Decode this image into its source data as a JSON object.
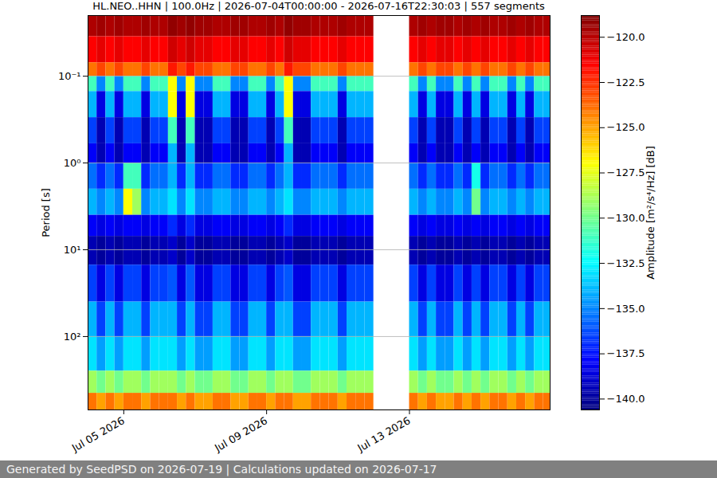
{
  "chart_data": {
    "type": "heatmap",
    "title": "HL.NEO..HHN | 100.0Hz | 2026-07-04T00:00:00 - 2026-07-16T22:30:03 | 557 segments",
    "ylabel": "Period [s]",
    "footer": "Generated by SeedPSD on 2026-07-19 | Calculations updated on 2026-07-17",
    "log": "y",
    "grid": "y",
    "xlim": [
      "2026-07-04T00:00:00",
      "2026-07-16T22:30:03"
    ],
    "xticks": [
      {
        "value": "2026-07-05T00:00:00",
        "label": "Jul 05 2026"
      },
      {
        "value": "2026-07-09T00:00:00",
        "label": "Jul 09 2026"
      },
      {
        "value": "2026-07-13T00:00:00",
        "label": "Jul 13 2026"
      }
    ],
    "ylim": [
      0.02,
      700
    ],
    "yticks": [
      {
        "value": 0.1,
        "label": "10⁻¹"
      },
      {
        "value": 1,
        "label": "10⁰"
      },
      {
        "value": 10,
        "label": "10¹"
      },
      {
        "value": 100,
        "label": "10²"
      }
    ],
    "colorbar": {
      "label": "Amplitude [m²/s⁴/Hz] [dB]",
      "range": [
        -140.6,
        -118.8
      ],
      "ticks": [
        {
          "value": -140,
          "label": "−140.0"
        },
        {
          "value": -137.5,
          "label": "−137.5"
        },
        {
          "value": -135,
          "label": "−135.0"
        },
        {
          "value": -132.5,
          "label": "−132.5"
        },
        {
          "value": -130,
          "label": "−130.0"
        },
        {
          "value": -127.5,
          "label": "−127.5"
        },
        {
          "value": -125,
          "label": "−125.0"
        },
        {
          "value": -122.5,
          "label": "−122.5"
        },
        {
          "value": -120,
          "label": "−120.0"
        }
      ]
    },
    "x_edges": [
      "2026-07-04T00:00:00",
      "2026-07-04T06:00:00",
      "2026-07-04T12:00:00",
      "2026-07-04T18:00:00",
      "2026-07-05T00:00:00",
      "2026-07-05T06:00:00",
      "2026-07-05T12:00:00",
      "2026-07-05T18:00:00",
      "2026-07-06T00:00:00",
      "2026-07-06T06:00:00",
      "2026-07-06T12:00:00",
      "2026-07-06T18:00:00",
      "2026-07-07T00:00:00",
      "2026-07-07T06:00:00",
      "2026-07-07T12:00:00",
      "2026-07-07T18:00:00",
      "2026-07-08T00:00:00",
      "2026-07-08T06:00:00",
      "2026-07-08T12:00:00",
      "2026-07-08T18:00:00",
      "2026-07-09T00:00:00",
      "2026-07-09T06:00:00",
      "2026-07-09T12:00:00",
      "2026-07-09T18:00:00",
      "2026-07-10T00:00:00",
      "2026-07-10T06:00:00",
      "2026-07-10T12:00:00",
      "2026-07-10T18:00:00",
      "2026-07-11T00:00:00",
      "2026-07-11T06:00:00",
      "2026-07-11T12:00:00",
      "2026-07-11T18:00:00",
      "2026-07-12T00:00:00",
      "2026-07-12T06:00:00",
      "2026-07-12T12:00:00",
      "2026-07-12T18:00:00",
      "2026-07-13T00:00:00",
      "2026-07-13T06:00:00",
      "2026-07-13T12:00:00",
      "2026-07-13T18:00:00",
      "2026-07-14T00:00:00",
      "2026-07-14T06:00:00",
      "2026-07-14T12:00:00",
      "2026-07-14T18:00:00",
      "2026-07-15T00:00:00",
      "2026-07-15T06:00:00",
      "2026-07-15T12:00:00",
      "2026-07-15T18:00:00",
      "2026-07-16T00:00:00",
      "2026-07-16T06:00:00",
      "2026-07-16T12:00:00",
      "2026-07-16T18:00:00",
      "2026-07-16T22:30:03"
    ],
    "y_edges": [
      0.02,
      0.035,
      0.07,
      0.1,
      0.15,
      0.3,
      0.6,
      1,
      2,
      4,
      7,
      15,
      40,
      100,
      250,
      450,
      700
    ],
    "values": [
      [
        -119.8,
        -119.5,
        -119.8,
        -119.5,
        -119.8,
        -119.8,
        -119.5,
        -119.8,
        -119.8,
        -119.2,
        -119.5,
        -119.2,
        -119.5,
        -119.5,
        -119.8,
        -119.8,
        -119.5,
        -119.5,
        -119.8,
        -119.8,
        -119.5,
        -119.8,
        -119.2,
        -119.5,
        -119.5,
        -119.8,
        -119.8,
        -119.8,
        -119.5,
        -119.8,
        -119.8,
        -119.8,
        null,
        null,
        null,
        null,
        -119.8,
        -119.5,
        -119.8,
        -119.5,
        -119.5,
        -119.8,
        -119.5,
        -119.8,
        -119.5,
        -119.8,
        -119.8,
        -119.5,
        -119.8,
        -119.5,
        -119.8,
        -119.8
      ],
      [
        -121.5,
        -121,
        -121.5,
        -121,
        -121.5,
        -121.5,
        -121,
        -121.5,
        -121.5,
        -120.5,
        -121,
        -120.5,
        -121,
        -121,
        -121.5,
        -121.5,
        -121,
        -121,
        -121.5,
        -121.5,
        -121,
        -121.5,
        -120.5,
        -121,
        -121,
        -121.5,
        -121.5,
        -121.5,
        -121,
        -121.5,
        -121.5,
        -121.5,
        null,
        null,
        null,
        null,
        -121.5,
        -121,
        -121.5,
        -121,
        -121,
        -121.5,
        -121,
        -121.5,
        -121,
        -121.5,
        -121.5,
        -121,
        -121.5,
        -121,
        -121.5,
        -121.5
      ],
      [
        -124,
        -123,
        -124,
        -123,
        -124,
        -124,
        -123,
        -124,
        -124,
        -122,
        -123,
        -122,
        -123,
        -123,
        -124,
        -124,
        -123,
        -123,
        -124,
        -124,
        -123,
        -124,
        -122,
        -123,
        -123,
        -124,
        -124,
        -124,
        -123,
        -124,
        -124,
        -124,
        null,
        null,
        null,
        null,
        -124,
        -123,
        -124,
        -123,
        -123,
        -124,
        -123,
        -124,
        -123,
        -124,
        -124,
        -123,
        -124,
        -123,
        -124,
        -124
      ],
      [
        -131,
        -135,
        -131,
        -135,
        -131,
        -131,
        -135,
        -131,
        -131,
        -127,
        -135,
        -127,
        -135,
        -135,
        -131,
        -131,
        -135,
        -135,
        -131,
        -131,
        -135,
        -131,
        -127,
        -135,
        -135,
        -131,
        -131,
        -131,
        -135,
        -131,
        -131,
        -131,
        null,
        null,
        null,
        null,
        -131,
        -135,
        -131,
        -135,
        -135,
        -131,
        -135,
        -131,
        -135,
        -131,
        -131,
        -135,
        -131,
        -135,
        -131,
        -131
      ],
      [
        -134,
        -138.5,
        -134,
        -138.5,
        -134,
        -134,
        -138.5,
        -134,
        -134,
        -127,
        -138.5,
        -127,
        -138.5,
        -138.5,
        -134,
        -134,
        -138.5,
        -138.5,
        -134,
        -134,
        -138.5,
        -134,
        -127,
        -138.5,
        -138.5,
        -134,
        -134,
        -134,
        -138.5,
        -134,
        -134,
        -134,
        null,
        null,
        null,
        null,
        -134,
        -138.5,
        -134,
        -138.5,
        -138.5,
        -134,
        -138.5,
        -134,
        -138.5,
        -134,
        -134,
        -138.5,
        -134,
        -138.5,
        -134,
        -134
      ],
      [
        -136.5,
        -139.5,
        -136.5,
        -139.5,
        -136.5,
        -136.5,
        -139.5,
        -136.5,
        -136.5,
        -131,
        -139.5,
        -131,
        -139.5,
        -139.5,
        -136.5,
        -136.5,
        -139.5,
        -139.5,
        -136.5,
        -136.5,
        -139.5,
        -136.5,
        -131,
        -139.5,
        -139.5,
        -136.5,
        -136.5,
        -136.5,
        -139.5,
        -136.5,
        -136.5,
        -136.5,
        null,
        null,
        null,
        null,
        -136.5,
        -139.5,
        -136.5,
        -139.5,
        -139.5,
        -136.5,
        -139.5,
        -136.5,
        -139.5,
        -136.5,
        -136.5,
        -139.5,
        -136.5,
        -139.5,
        -136.5,
        -136.5
      ],
      [
        -138,
        -139.5,
        -138,
        -139.5,
        -138,
        -138,
        -139.5,
        -138,
        -138,
        -134,
        -139.5,
        -134,
        -139.5,
        -139.5,
        -138,
        -138,
        -139.5,
        -139.5,
        -138,
        -138,
        -139.5,
        -138,
        -134,
        -139.5,
        -139.5,
        -138,
        -138,
        -138,
        -139.5,
        -138,
        -138,
        -138,
        null,
        null,
        null,
        null,
        -138,
        -139.5,
        -138,
        -139.5,
        -139.5,
        -138,
        -139.5,
        -138,
        -139.5,
        -138,
        -138,
        -139.5,
        -138,
        -139.5,
        -138,
        -138
      ],
      [
        -135.5,
        -137,
        -135.5,
        -137,
        -131,
        -131,
        -137,
        -135.5,
        -135.5,
        -134,
        -137,
        -134,
        -137,
        -137,
        -135.5,
        -135.5,
        -137,
        -137,
        -135.5,
        -135.5,
        -137,
        -135.5,
        -134,
        -137,
        -137,
        -135.5,
        -135.5,
        -135.5,
        -137,
        -135.5,
        -135.5,
        -135.5,
        null,
        null,
        null,
        null,
        -135.5,
        -137,
        -135.5,
        -137,
        -137,
        -135.5,
        -137,
        -132,
        -137,
        -135.5,
        -135.5,
        -137,
        -135.5,
        -137,
        -135.5,
        -135.5
      ],
      [
        -134,
        -135,
        -134,
        -135,
        -127,
        -129,
        -135,
        -134,
        -134,
        -133,
        -135,
        -133,
        -135,
        -135,
        -134,
        -134,
        -135,
        -135,
        -134,
        -134,
        -135,
        -134,
        -133,
        -135,
        -135,
        -134,
        -134,
        -134,
        -135,
        -134,
        -134,
        -134,
        null,
        null,
        null,
        null,
        -134,
        -135,
        -134,
        -135,
        -135,
        -134,
        -135,
        -130,
        -135,
        -134,
        -134,
        -135,
        -134,
        -135,
        -134,
        -134
      ],
      [
        -138,
        -138.5,
        -138,
        -138.5,
        -138,
        -138,
        -138.5,
        -138,
        -138,
        -137,
        -138.5,
        -137,
        -138.5,
        -138.5,
        -138,
        -138,
        -138.5,
        -138.5,
        -138,
        -138,
        -138.5,
        -138,
        -137,
        -138.5,
        -138.5,
        -138,
        -138,
        -138,
        -138.5,
        -138,
        -138,
        -138,
        null,
        null,
        null,
        null,
        -138,
        -138.5,
        -138,
        -138.5,
        -138.5,
        -138,
        -138.5,
        -138,
        -138.5,
        -138,
        -138,
        -138.5,
        -138,
        -138.5,
        -138,
        -138
      ],
      [
        -139.5,
        -140,
        -139.5,
        -140,
        -139.5,
        -139.5,
        -140,
        -139.5,
        -139.5,
        -139,
        -140,
        -139,
        -140,
        -140,
        -139.5,
        -139.5,
        -140,
        -140,
        -139.5,
        -139.5,
        -140,
        -139.5,
        -139,
        -140,
        -140,
        -139.5,
        -139.5,
        -139.5,
        -140,
        -139.5,
        -139.5,
        -139.5,
        null,
        null,
        null,
        null,
        -139.5,
        -140,
        -139.5,
        -140,
        -140,
        -139.5,
        -140,
        -139.5,
        -140,
        -139.5,
        -139.5,
        -140,
        -139.5,
        -140,
        -139.5,
        -139.5
      ],
      [
        -136.5,
        -138.5,
        -136.5,
        -138.5,
        -136.5,
        -136.5,
        -138.5,
        -136.5,
        -136.5,
        -136,
        -138.5,
        -136,
        -138.5,
        -138.5,
        -136.5,
        -136.5,
        -138.5,
        -138.5,
        -136.5,
        -136.5,
        -138.5,
        -136.5,
        -136,
        -138.5,
        -138.5,
        -136.5,
        -136.5,
        -136.5,
        -138.5,
        -136.5,
        -136.5,
        -136.5,
        null,
        null,
        null,
        null,
        -136.5,
        -138.5,
        -136.5,
        -138.5,
        -138.5,
        -136.5,
        -138.5,
        -136.5,
        -138.5,
        -136.5,
        -136.5,
        -138.5,
        -136.5,
        -138.5,
        -136.5,
        -136.5
      ],
      [
        -134,
        -136.5,
        -134,
        -136.5,
        -134,
        -134,
        -136.5,
        -134,
        -134,
        -134,
        -136.5,
        -134,
        -136.5,
        -136.5,
        -134,
        -134,
        -136.5,
        -136.5,
        -134,
        -134,
        -136.5,
        -134,
        -134,
        -136.5,
        -136.5,
        -134,
        -134,
        -134,
        -136.5,
        -134,
        -134,
        -134,
        null,
        null,
        null,
        null,
        -134,
        -136.5,
        -134,
        -136.5,
        -136.5,
        -134,
        -136.5,
        -134,
        -136.5,
        -134,
        -134,
        -136.5,
        -134,
        -136.5,
        -134,
        -134
      ],
      [
        -133,
        -134.5,
        -133,
        -134.5,
        -133,
        -133,
        -134.5,
        -133,
        -133,
        -133,
        -134.5,
        -133,
        -134.5,
        -134.5,
        -133,
        -133,
        -134.5,
        -134.5,
        -133,
        -133,
        -134.5,
        -133,
        -133,
        -134.5,
        -134.5,
        -133,
        -133,
        -133,
        -134.5,
        -133,
        -133,
        -133,
        null,
        null,
        null,
        null,
        -133,
        -134.5,
        -133,
        -134.5,
        -134.5,
        -133,
        -134.5,
        -133,
        -134.5,
        -133,
        -133,
        -134.5,
        -133,
        -134.5,
        -133,
        -133
      ],
      [
        -129,
        -130,
        -129,
        -130,
        -129,
        -129,
        -130,
        -129,
        -129,
        -129,
        -130,
        -129,
        -130,
        -130,
        -129,
        -129,
        -130,
        -130,
        -129,
        -129,
        -130,
        -129,
        -129,
        -130,
        -130,
        -129,
        -129,
        -129,
        -130,
        -129,
        -129,
        -129,
        null,
        null,
        null,
        null,
        -129,
        -130,
        -129,
        -130,
        -130,
        -129,
        -130,
        -129,
        -130,
        -129,
        -129,
        -130,
        -129,
        -130,
        -129,
        -129
      ],
      [
        -124,
        -125,
        -124,
        -125,
        -124,
        -124,
        -125,
        -124,
        -124,
        -124,
        -125,
        -124,
        -125,
        -125,
        -124,
        -124,
        -125,
        -125,
        -124,
        -124,
        -125,
        -124,
        -124,
        -125,
        -125,
        -124,
        -124,
        -124,
        -125,
        -124,
        -124,
        -124,
        null,
        null,
        null,
        null,
        -124,
        -125,
        -124,
        -125,
        -125,
        -124,
        -125,
        -124,
        -125,
        -124,
        -124,
        -125,
        -124,
        -125,
        -124,
        -124
      ]
    ]
  }
}
